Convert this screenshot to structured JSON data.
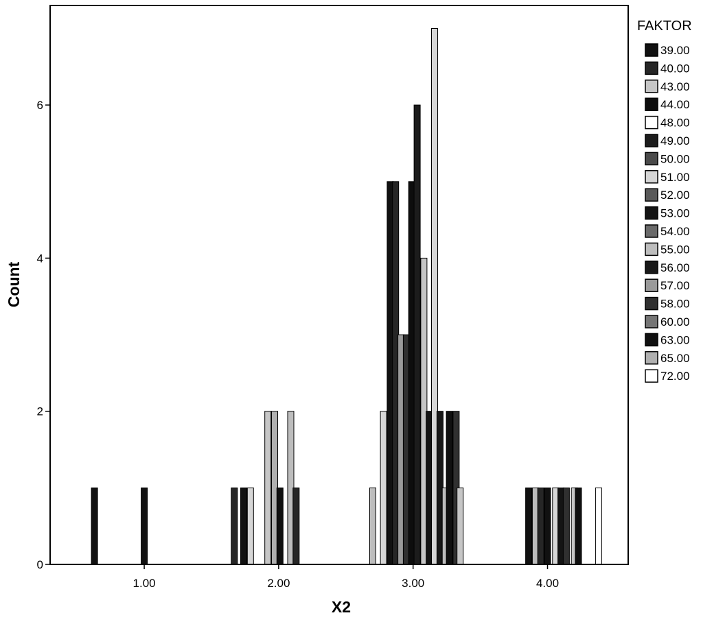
{
  "chart_data": {
    "type": "bar",
    "xlabel": "X2",
    "ylabel": "Count",
    "xlim": [
      0.3,
      4.6
    ],
    "ylim": [
      0,
      7.3
    ],
    "x_ticks": [
      1.0,
      2.0,
      3.0,
      4.0
    ],
    "x_tick_labels": [
      "1.00",
      "2.00",
      "3.00",
      "4.00"
    ],
    "y_ticks": [
      0,
      2,
      4,
      6
    ],
    "y_tick_labels": [
      "0",
      "2",
      "4",
      "6"
    ],
    "grid": false,
    "legend": {
      "title": "FAKTOR",
      "placement": "right",
      "entries": [
        {
          "label": "39.00",
          "color": "#111111"
        },
        {
          "label": "40.00",
          "color": "#262626"
        },
        {
          "label": "43.00",
          "color": "#c6c6c6"
        },
        {
          "label": "44.00",
          "color": "#0d0d0d"
        },
        {
          "label": "48.00",
          "color": "#ffffff"
        },
        {
          "label": "49.00",
          "color": "#1c1c1c"
        },
        {
          "label": "50.00",
          "color": "#4a4a4a"
        },
        {
          "label": "51.00",
          "color": "#d6d6d6"
        },
        {
          "label": "52.00",
          "color": "#595959"
        },
        {
          "label": "53.00",
          "color": "#141414"
        },
        {
          "label": "54.00",
          "color": "#6a6a6a"
        },
        {
          "label": "55.00",
          "color": "#bdbdbd"
        },
        {
          "label": "56.00",
          "color": "#181818"
        },
        {
          "label": "57.00",
          "color": "#9a9a9a"
        },
        {
          "label": "58.00",
          "color": "#303030"
        },
        {
          "label": "60.00",
          "color": "#757575"
        },
        {
          "label": "63.00",
          "color": "#101010"
        },
        {
          "label": "65.00",
          "color": "#b0b0b0"
        },
        {
          "label": "72.00",
          "color": "#ffffff"
        }
      ]
    },
    "bars": [
      {
        "x": 0.63,
        "count": 1,
        "color": "#111111"
      },
      {
        "x": 1.0,
        "count": 1,
        "color": "#111111"
      },
      {
        "x": 1.67,
        "count": 1,
        "color": "#262626"
      },
      {
        "x": 1.74,
        "count": 1,
        "color": "#111111"
      },
      {
        "x": 1.79,
        "count": 1,
        "color": "#d6d6d6"
      },
      {
        "x": 1.92,
        "count": 2,
        "color": "#c6c6c6"
      },
      {
        "x": 1.97,
        "count": 2,
        "color": "#b0b0b0"
      },
      {
        "x": 2.01,
        "count": 1,
        "color": "#111111"
      },
      {
        "x": 2.09,
        "count": 2,
        "color": "#bdbdbd"
      },
      {
        "x": 2.13,
        "count": 1,
        "color": "#262626"
      },
      {
        "x": 2.7,
        "count": 1,
        "color": "#bdbdbd"
      },
      {
        "x": 2.78,
        "count": 2,
        "color": "#d6d6d6"
      },
      {
        "x": 2.83,
        "count": 5,
        "color": "#111111"
      },
      {
        "x": 2.87,
        "count": 5,
        "color": "#262626"
      },
      {
        "x": 2.91,
        "count": 3,
        "color": "#9a9a9a"
      },
      {
        "x": 2.95,
        "count": 3,
        "color": "#303030"
      },
      {
        "x": 2.99,
        "count": 5,
        "color": "#0d0d0d"
      },
      {
        "x": 3.03,
        "count": 6,
        "color": "#1c1c1c"
      },
      {
        "x": 3.08,
        "count": 4,
        "color": "#c6c6c6"
      },
      {
        "x": 3.12,
        "count": 2,
        "color": "#141414"
      },
      {
        "x": 3.16,
        "count": 7,
        "color": "#d6d6d6"
      },
      {
        "x": 3.2,
        "count": 2,
        "color": "#181818"
      },
      {
        "x": 3.24,
        "count": 1,
        "color": "#bdbdbd"
      },
      {
        "x": 3.27,
        "count": 2,
        "color": "#101010"
      },
      {
        "x": 3.32,
        "count": 2,
        "color": "#303030"
      },
      {
        "x": 3.35,
        "count": 1,
        "color": "#c6c6c6"
      },
      {
        "x": 3.86,
        "count": 1,
        "color": "#111111"
      },
      {
        "x": 3.91,
        "count": 1,
        "color": "#bdbdbd"
      },
      {
        "x": 3.95,
        "count": 1,
        "color": "#262626"
      },
      {
        "x": 4.0,
        "count": 1,
        "color": "#111111"
      },
      {
        "x": 4.06,
        "count": 1,
        "color": "#d6d6d6"
      },
      {
        "x": 4.1,
        "count": 1,
        "color": "#141414"
      },
      {
        "x": 4.14,
        "count": 1,
        "color": "#303030"
      },
      {
        "x": 4.2,
        "count": 1,
        "color": "#c6c6c6"
      },
      {
        "x": 4.23,
        "count": 1,
        "color": "#101010"
      },
      {
        "x": 4.38,
        "count": 1,
        "color": "#ffffff"
      }
    ]
  }
}
